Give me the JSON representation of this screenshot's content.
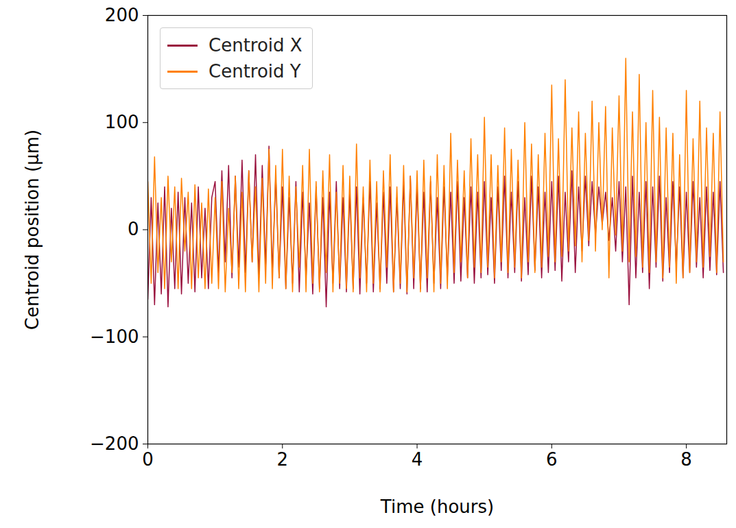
{
  "chart_data": {
    "type": "line",
    "xlabel": "Time (hours)",
    "ylabel": "Centroid position (µm)",
    "xlim": [
      0,
      8.6
    ],
    "ylim": [
      -200,
      200
    ],
    "xticks": [
      0,
      2,
      4,
      6,
      8
    ],
    "yticks": [
      -200,
      -100,
      0,
      100,
      200
    ],
    "grid": false,
    "legend": "upper left",
    "x": [
      0,
      0.05,
      0.1,
      0.15,
      0.2,
      0.25,
      0.3,
      0.35,
      0.4,
      0.45,
      0.5,
      0.55,
      0.6,
      0.65,
      0.7,
      0.75,
      0.8,
      0.85,
      0.9,
      0.95,
      1,
      1.05,
      1.1,
      1.15,
      1.2,
      1.25,
      1.3,
      1.35,
      1.4,
      1.45,
      1.5,
      1.55,
      1.6,
      1.65,
      1.7,
      1.75,
      1.8,
      1.85,
      1.9,
      1.95,
      2,
      2.05,
      2.1,
      2.15,
      2.2,
      2.25,
      2.3,
      2.35,
      2.4,
      2.45,
      2.5,
      2.55,
      2.6,
      2.65,
      2.7,
      2.75,
      2.8,
      2.85,
      2.9,
      2.95,
      3,
      3.05,
      3.1,
      3.15,
      3.2,
      3.25,
      3.3,
      3.35,
      3.4,
      3.45,
      3.5,
      3.55,
      3.6,
      3.65,
      3.7,
      3.75,
      3.8,
      3.85,
      3.9,
      3.95,
      4,
      4.05,
      4.1,
      4.15,
      4.2,
      4.25,
      4.3,
      4.35,
      4.4,
      4.45,
      4.5,
      4.55,
      4.6,
      4.65,
      4.7,
      4.75,
      4.8,
      4.85,
      4.9,
      4.95,
      5,
      5.05,
      5.1,
      5.15,
      5.2,
      5.25,
      5.3,
      5.35,
      5.4,
      5.45,
      5.5,
      5.55,
      5.6,
      5.65,
      5.7,
      5.75,
      5.8,
      5.85,
      5.9,
      5.95,
      6,
      6.05,
      6.1,
      6.15,
      6.2,
      6.25,
      6.3,
      6.35,
      6.4,
      6.45,
      6.5,
      6.55,
      6.6,
      6.65,
      6.7,
      6.75,
      6.8,
      6.85,
      6.9,
      6.95,
      7,
      7.05,
      7.1,
      7.15,
      7.2,
      7.25,
      7.3,
      7.35,
      7.4,
      7.45,
      7.5,
      7.55,
      7.6,
      7.65,
      7.7,
      7.75,
      7.8,
      7.85,
      7.9,
      7.95,
      8,
      8.05,
      8.1,
      8.15,
      8.2,
      8.25,
      8.3,
      8.35,
      8.4,
      8.45,
      8.5,
      8.55
    ],
    "series": [
      {
        "name": "Centroid X",
        "color": "#990f3d",
        "values": [
          -65,
          30,
          -70,
          25,
          -60,
          40,
          -72,
          20,
          -55,
          35,
          -60,
          30,
          -50,
          25,
          -58,
          40,
          -45,
          20,
          -55,
          30,
          45,
          -40,
          55,
          -30,
          60,
          -45,
          50,
          -35,
          65,
          -40,
          55,
          -30,
          70,
          -45,
          60,
          -35,
          78,
          -40,
          50,
          -45,
          40,
          -55,
          30,
          -50,
          45,
          -58,
          35,
          -45,
          25,
          -60,
          40,
          -55,
          30,
          -72,
          35,
          -50,
          45,
          -55,
          30,
          -58,
          35,
          -55,
          40,
          -60,
          30,
          -50,
          45,
          -58,
          25,
          -55,
          35,
          -50,
          40,
          -58,
          30,
          -55,
          45,
          -60,
          50,
          -55,
          40,
          -55,
          35,
          -58,
          45,
          -50,
          30,
          -55,
          40,
          -45,
          35,
          -50,
          45,
          -48,
          30,
          -45,
          40,
          -50,
          35,
          -45,
          45,
          -42,
          30,
          -50,
          40,
          -38,
          50,
          -45,
          35,
          -40,
          45,
          -48,
          30,
          -42,
          50,
          -38,
          40,
          -45,
          35,
          -40,
          45,
          -38,
          50,
          -48,
          35,
          -30,
          55,
          -40,
          40,
          -20,
          50,
          -15,
          45,
          -5,
          40,
          5,
          35,
          -10,
          30,
          -20,
          45,
          -30,
          40,
          -70,
          50,
          -45,
          35,
          -40,
          45,
          -55,
          40,
          -35,
          50,
          -48,
          30,
          -40,
          45,
          -35,
          40,
          -45,
          35,
          -40,
          45,
          -35,
          30,
          -45,
          40,
          -38,
          35,
          -42,
          45,
          -40
        ]
      },
      {
        "name": "Centroid Y",
        "color": "#ff8000",
        "values": [
          45,
          -50,
          68,
          -40,
          30,
          -55,
          50,
          -30,
          40,
          -55,
          48,
          -20,
          35,
          -55,
          42,
          -45,
          25,
          -55,
          38,
          -50,
          30,
          -55,
          45,
          -58,
          20,
          -40,
          50,
          -55,
          35,
          -58,
          55,
          -30,
          40,
          -58,
          48,
          -50,
          75,
          -55,
          60,
          -45,
          75,
          -55,
          50,
          -58,
          40,
          -35,
          60,
          -58,
          75,
          -50,
          45,
          -58,
          55,
          -40,
          70,
          -58,
          35,
          -50,
          60,
          -55,
          50,
          -58,
          80,
          -45,
          40,
          -58,
          65,
          -50,
          45,
          -58,
          55,
          -35,
          70,
          -58,
          40,
          -50,
          60,
          -58,
          50,
          -45,
          55,
          -58,
          65,
          -45,
          50,
          -58,
          70,
          -50,
          60,
          -55,
          90,
          -40,
          65,
          -30,
          55,
          -45,
          85,
          -35,
          70,
          -40,
          105,
          -35,
          70,
          -45,
          60,
          -30,
          95,
          -40,
          75,
          -35,
          65,
          -45,
          100,
          -30,
          80,
          -40,
          70,
          -35,
          90,
          -25,
          135,
          -30,
          85,
          -25,
          140,
          -20,
          95,
          -15,
          110,
          -30,
          90,
          -10,
          120,
          -20,
          100,
          0,
          115,
          -45,
          95,
          -5,
          125,
          -20,
          160,
          -30,
          110,
          -25,
          145,
          -35,
          100,
          -40,
          130,
          -30,
          105,
          -45,
          95,
          -35,
          90,
          -50,
          70,
          -45,
          130,
          -40,
          85,
          -30,
          120,
          -35,
          95,
          -25,
          90,
          -40,
          110,
          -30
        ]
      }
    ]
  }
}
